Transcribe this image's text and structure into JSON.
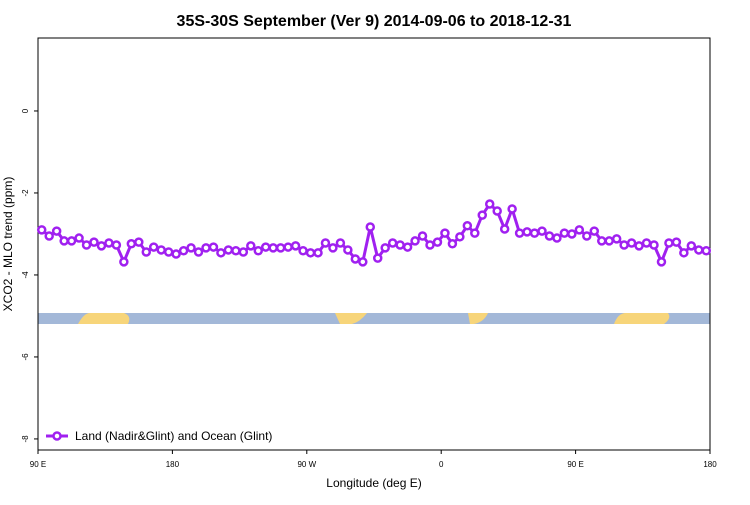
{
  "chart_data": {
    "type": "line",
    "title": "35S-30S September (Ver 9)   2014-09-06 to 2018-12-31",
    "xlabel": "Longitude (deg E)",
    "ylabel": "XCO2 - MLO trend (ppm)",
    "x": [
      92.5,
      97.5,
      102.5,
      107.5,
      112.5,
      117.5,
      122.5,
      127.5,
      132.5,
      137.5,
      142.5,
      147.5,
      152.5,
      157.5,
      162.5,
      167.5,
      172.5,
      177.5,
      182.5,
      187.5,
      192.5,
      197.5,
      202.5,
      207.5,
      212.5,
      217.5,
      222.5,
      227.5,
      232.5,
      237.5,
      242.5,
      247.5,
      252.5,
      257.5,
      262.5,
      267.5,
      272.5,
      277.5,
      282.5,
      287.5,
      292.5,
      297.5,
      302.5,
      307.5,
      312.5,
      317.5,
      322.5,
      327.5,
      332.5,
      337.5,
      342.5,
      347.5,
      352.5,
      357.5,
      362.5,
      367.5,
      372.5,
      377.5,
      382.5,
      387.5,
      392.5,
      397.5,
      402.5,
      407.5,
      412.5,
      417.5,
      422.5,
      427.5,
      432.5,
      437.5,
      442.5,
      447.5,
      452.5,
      457.5,
      462.5,
      467.5,
      472.5,
      477.5,
      482.5,
      487.5,
      492.5,
      497.5,
      502.5,
      507.5,
      512.5,
      517.5,
      522.5,
      527.5,
      532.5,
      537.5
    ],
    "series": [
      {
        "name": "Land (Nadir&Glint) and Ocean (Glint)",
        "color": "#a020f0",
        "values": [
          -2.9,
          -3.05,
          -2.93,
          -3.17,
          -3.17,
          -3.1,
          -3.27,
          -3.2,
          -3.29,
          -3.22,
          -3.27,
          -3.68,
          -3.24,
          -3.2,
          -3.44,
          -3.32,
          -3.39,
          -3.44,
          -3.49,
          -3.41,
          -3.34,
          -3.44,
          -3.34,
          -3.32,
          -3.46,
          -3.39,
          -3.41,
          -3.44,
          -3.29,
          -3.41,
          -3.32,
          -3.34,
          -3.34,
          -3.32,
          -3.29,
          -3.41,
          -3.46,
          -3.46,
          -3.22,
          -3.34,
          -3.22,
          -3.39,
          -3.61,
          -3.68,
          -2.83,
          -3.59,
          -3.34,
          -3.22,
          -3.27,
          -3.32,
          -3.17,
          -3.05,
          -3.27,
          -3.2,
          -2.98,
          -3.24,
          -3.07,
          -2.8,
          -2.98,
          -2.54,
          -2.27,
          -2.44,
          -2.88,
          -2.39,
          -2.98,
          -2.95,
          -2.98,
          -2.93,
          -3.05,
          -3.1,
          -2.98,
          -3.0,
          -2.9,
          -3.05,
          -2.93,
          -3.17,
          -3.17,
          -3.12,
          -3.27,
          -3.22,
          -3.29,
          -3.22,
          -3.27,
          -3.68,
          -3.22,
          -3.2,
          -3.46,
          -3.29,
          -3.39,
          -3.41
        ]
      }
    ],
    "xlim": [
      90,
      540
    ],
    "xticks": [
      {
        "value": 90,
        "label": "90 E"
      },
      180,
      {
        "value": 270,
        "label": "90 W"
      },
      {
        "value": 360,
        "label": "0"
      },
      {
        "value": 450,
        "label": "90 E"
      },
      {
        "value": 540,
        "label": "180"
      }
    ],
    "ylim": [
      -8.27,
      1.78
    ],
    "yticks": [
      0,
      -2,
      -4,
      -6,
      -8
    ],
    "legend": "bottom-left"
  }
}
